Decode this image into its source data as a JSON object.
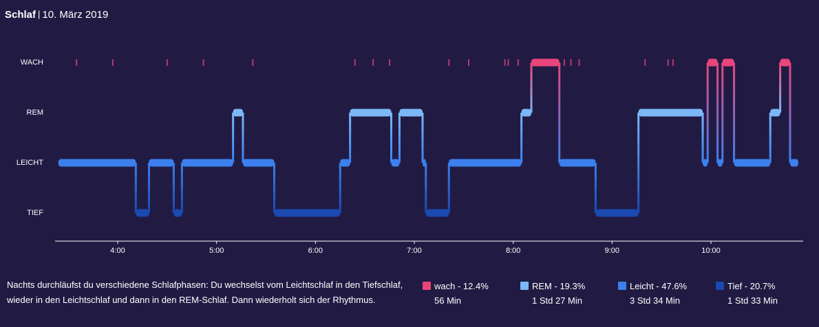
{
  "header": {
    "title": "Schlaf",
    "separator": "|",
    "date": "10. März 2019"
  },
  "colors": {
    "wach": "#e8457a",
    "rem": "#7cb8f8",
    "leicht": "#3b80ee",
    "tief": "#1a49b0",
    "background": "#211b44",
    "axis": "#ffffff"
  },
  "chart_data": {
    "type": "line",
    "stages": [
      "WACH",
      "REM",
      "LEICHT",
      "TIEF"
    ],
    "xlabel": "",
    "ylabel": "",
    "x_ticks": [
      "4:00",
      "5:00",
      "6:00",
      "7:00",
      "8:00",
      "9:00",
      "10:00"
    ],
    "x_range": [
      "3:24",
      "10:54"
    ],
    "segments": [
      {
        "stage": "LEICHT",
        "start": "3:24",
        "end": "4:11"
      },
      {
        "stage": "TIEF",
        "start": "4:11",
        "end": "4:19"
      },
      {
        "stage": "LEICHT",
        "start": "4:19",
        "end": "4:34"
      },
      {
        "stage": "TIEF",
        "start": "4:34",
        "end": "4:39"
      },
      {
        "stage": "LEICHT",
        "start": "4:39",
        "end": "5:10"
      },
      {
        "stage": "REM",
        "start": "5:10",
        "end": "5:16"
      },
      {
        "stage": "LEICHT",
        "start": "5:16",
        "end": "5:35"
      },
      {
        "stage": "TIEF",
        "start": "5:35",
        "end": "6:15"
      },
      {
        "stage": "LEICHT",
        "start": "6:15",
        "end": "6:21"
      },
      {
        "stage": "REM",
        "start": "6:21",
        "end": "6:46"
      },
      {
        "stage": "LEICHT",
        "start": "6:46",
        "end": "6:51"
      },
      {
        "stage": "REM",
        "start": "6:51",
        "end": "7:05"
      },
      {
        "stage": "LEICHT",
        "start": "7:05",
        "end": "7:07"
      },
      {
        "stage": "TIEF",
        "start": "7:07",
        "end": "7:21"
      },
      {
        "stage": "LEICHT",
        "start": "7:21",
        "end": "8:05"
      },
      {
        "stage": "REM",
        "start": "8:05",
        "end": "8:11"
      },
      {
        "stage": "WACH",
        "start": "8:11",
        "end": "8:28"
      },
      {
        "stage": "LEICHT",
        "start": "8:28",
        "end": "8:50"
      },
      {
        "stage": "TIEF",
        "start": "8:50",
        "end": "9:16"
      },
      {
        "stage": "REM",
        "start": "9:16",
        "end": "9:55"
      },
      {
        "stage": "LEICHT",
        "start": "9:55",
        "end": "9:58"
      },
      {
        "stage": "WACH",
        "start": "9:58",
        "end": "10:04"
      },
      {
        "stage": "LEICHT",
        "start": "10:04",
        "end": "10:07"
      },
      {
        "stage": "WACH",
        "start": "10:07",
        "end": "10:14"
      },
      {
        "stage": "LEICHT",
        "start": "10:14",
        "end": "10:36"
      },
      {
        "stage": "REM",
        "start": "10:36",
        "end": "10:42"
      },
      {
        "stage": "WACH",
        "start": "10:42",
        "end": "10:48"
      },
      {
        "stage": "LEICHT",
        "start": "10:48",
        "end": "10:53"
      }
    ],
    "wake_markers": [
      "3:35",
      "3:57",
      "4:30",
      "4:52",
      "5:22",
      "6:24",
      "6:35",
      "6:45",
      "7:21",
      "7:33",
      "7:55",
      "7:57",
      "8:03",
      "8:31",
      "8:35",
      "8:40",
      "9:20",
      "9:34",
      "9:37"
    ],
    "legend": [
      {
        "stage": "wach",
        "label": "wach - 12.4%",
        "duration": "56 Min",
        "percent": 12.4
      },
      {
        "stage": "rem",
        "label": "REM - 19.3%",
        "duration": "1 Std 27 Min",
        "percent": 19.3
      },
      {
        "stage": "leicht",
        "label": "Leicht - 47.6%",
        "duration": "3 Std 34 Min",
        "percent": 47.6
      },
      {
        "stage": "tief",
        "label": "Tief - 20.7%",
        "duration": "1 Std 33 Min",
        "percent": 20.7
      }
    ]
  },
  "description": "Nachts durchläufst du verschiedene Schlafphasen: Du wechselst vom Leichtschlaf in den Tiefschlaf, wieder in den Leichtschlaf und dann in den REM-Schlaf. Dann wiederholt sich der Rhythmus."
}
